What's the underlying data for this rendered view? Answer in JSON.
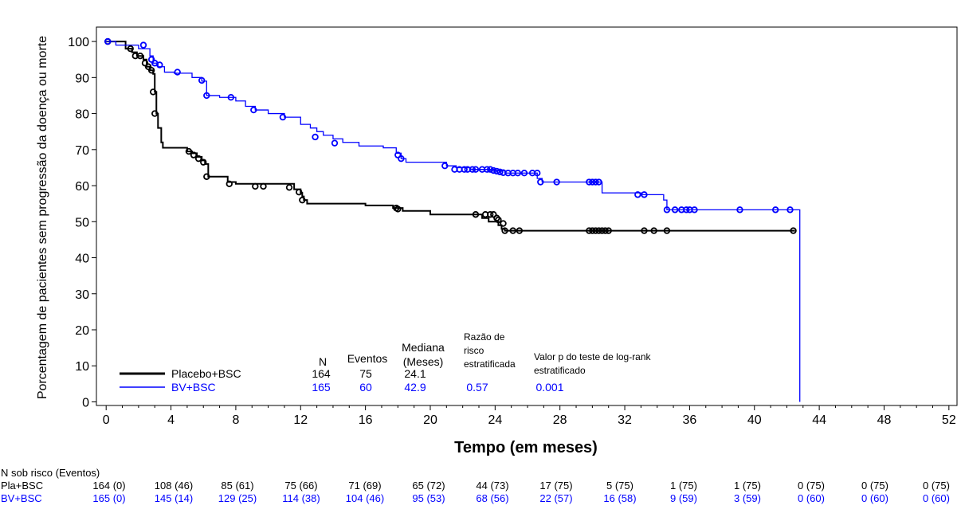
{
  "chart_data": {
    "type": "line",
    "subtype": "kaplan-meier",
    "xlabel": "Tempo (em meses)",
    "ylabel": "Porcentagem de pacientes sem progressão da doença ou morte",
    "xlim": [
      -0.6,
      52.5
    ],
    "ylim": [
      -1,
      104
    ],
    "xticks": [
      0,
      4,
      8,
      12,
      16,
      20,
      24,
      28,
      32,
      36,
      40,
      44,
      48,
      52
    ],
    "yticks": [
      0,
      10,
      20,
      30,
      40,
      50,
      60,
      70,
      80,
      90,
      100
    ],
    "series": [
      {
        "name": "Placebo+BSC",
        "color": "#000000",
        "steps": [
          [
            0,
            100
          ],
          [
            1.2,
            98
          ],
          [
            1.6,
            97
          ],
          [
            1.9,
            96
          ],
          [
            2.3,
            95
          ],
          [
            2.5,
            93
          ],
          [
            2.7,
            92
          ],
          [
            2.9,
            91
          ],
          [
            3.0,
            86
          ],
          [
            3.1,
            80
          ],
          [
            3.2,
            76
          ],
          [
            3.4,
            72
          ],
          [
            3.5,
            70.5
          ],
          [
            5.0,
            69.5
          ],
          [
            5.3,
            69
          ],
          [
            5.6,
            68
          ],
          [
            5.9,
            67
          ],
          [
            6.1,
            66
          ],
          [
            6.3,
            62.5
          ],
          [
            7.5,
            61
          ],
          [
            8.0,
            60.5
          ],
          [
            11.6,
            59
          ],
          [
            12.0,
            58
          ],
          [
            12.1,
            57
          ],
          [
            12.2,
            56
          ],
          [
            12.4,
            55
          ],
          [
            16.0,
            54.5
          ],
          [
            17.7,
            53.8
          ],
          [
            18.3,
            53
          ],
          [
            20.0,
            52
          ],
          [
            22.8,
            52
          ],
          [
            23.2,
            51
          ],
          [
            23.6,
            50
          ],
          [
            24.2,
            49
          ],
          [
            24.4,
            48
          ],
          [
            24.6,
            47.5
          ],
          [
            42.5,
            47.5
          ]
        ],
        "censored": [
          [
            0.1,
            100
          ],
          [
            1.5,
            98
          ],
          [
            1.8,
            96
          ],
          [
            2.1,
            96
          ],
          [
            2.4,
            94
          ],
          [
            2.6,
            93
          ],
          [
            2.8,
            92
          ],
          [
            2.9,
            86
          ],
          [
            3.0,
            80
          ],
          [
            5.1,
            69.5
          ],
          [
            5.4,
            68.5
          ],
          [
            5.7,
            67.5
          ],
          [
            6.0,
            66.5
          ],
          [
            6.2,
            62.5
          ],
          [
            7.6,
            60.5
          ],
          [
            9.2,
            59.8
          ],
          [
            9.7,
            59.8
          ],
          [
            11.3,
            59.5
          ],
          [
            11.9,
            58.2
          ],
          [
            12.1,
            56
          ],
          [
            17.9,
            53.8
          ],
          [
            18.0,
            53.5
          ],
          [
            22.8,
            52
          ],
          [
            23.4,
            52
          ],
          [
            23.7,
            52
          ],
          [
            23.9,
            52
          ],
          [
            24.1,
            51
          ],
          [
            24.2,
            50.5
          ],
          [
            24.5,
            49.5
          ],
          [
            24.6,
            47.5
          ],
          [
            25.1,
            47.5
          ],
          [
            25.5,
            47.5
          ],
          [
            29.8,
            47.5
          ],
          [
            30.0,
            47.5
          ],
          [
            30.2,
            47.5
          ],
          [
            30.4,
            47.5
          ],
          [
            30.6,
            47.5
          ],
          [
            30.8,
            47.5
          ],
          [
            31.0,
            47.5
          ],
          [
            33.2,
            47.5
          ],
          [
            33.8,
            47.5
          ],
          [
            34.6,
            47.5
          ],
          [
            42.4,
            47.5
          ]
        ]
      },
      {
        "name": "BV+BSC",
        "color": "#0000ff",
        "steps": [
          [
            0,
            100
          ],
          [
            0.6,
            99
          ],
          [
            2.0,
            98
          ],
          [
            2.7,
            96
          ],
          [
            2.9,
            94
          ],
          [
            3.2,
            93
          ],
          [
            3.6,
            91.5
          ],
          [
            4.2,
            91.2
          ],
          [
            5.3,
            90
          ],
          [
            5.9,
            89
          ],
          [
            6.2,
            85
          ],
          [
            7.0,
            84.5
          ],
          [
            8.0,
            83.5
          ],
          [
            8.6,
            82
          ],
          [
            9.2,
            81
          ],
          [
            10.0,
            80
          ],
          [
            11.0,
            79
          ],
          [
            12.0,
            77
          ],
          [
            12.6,
            76
          ],
          [
            13.0,
            75
          ],
          [
            13.4,
            74
          ],
          [
            14.0,
            73
          ],
          [
            14.6,
            72
          ],
          [
            15.6,
            71
          ],
          [
            17.1,
            70.5
          ],
          [
            17.9,
            69
          ],
          [
            18.2,
            67.5
          ],
          [
            18.5,
            66.5
          ],
          [
            21.0,
            65.5
          ],
          [
            21.6,
            65
          ],
          [
            22.5,
            64.5
          ],
          [
            24.0,
            64.2
          ],
          [
            24.6,
            63.5
          ],
          [
            26.6,
            62
          ],
          [
            26.9,
            61
          ],
          [
            29.8,
            61
          ],
          [
            30.6,
            58
          ],
          [
            33.0,
            57.5
          ],
          [
            34.4,
            56
          ],
          [
            34.6,
            53.3
          ],
          [
            42.8,
            53.3
          ],
          [
            42.8,
            0
          ]
        ],
        "censored": [
          [
            0.1,
            100
          ],
          [
            2.3,
            99
          ],
          [
            2.8,
            95
          ],
          [
            3.0,
            94
          ],
          [
            3.3,
            93.5
          ],
          [
            4.4,
            91.5
          ],
          [
            5.9,
            89.2
          ],
          [
            6.2,
            85
          ],
          [
            7.7,
            84.5
          ],
          [
            9.1,
            81
          ],
          [
            10.9,
            79
          ],
          [
            12.9,
            73.5
          ],
          [
            14.1,
            71.8
          ],
          [
            18.0,
            68.5
          ],
          [
            18.2,
            67.5
          ],
          [
            20.9,
            65.5
          ],
          [
            21.5,
            64.5
          ],
          [
            21.8,
            64.5
          ],
          [
            22.1,
            64.5
          ],
          [
            22.3,
            64.5
          ],
          [
            22.6,
            64.5
          ],
          [
            22.8,
            64.5
          ],
          [
            23.2,
            64.5
          ],
          [
            23.5,
            64.5
          ],
          [
            23.7,
            64.5
          ],
          [
            23.9,
            64.2
          ],
          [
            24.1,
            64
          ],
          [
            24.3,
            63.8
          ],
          [
            24.5,
            63.6
          ],
          [
            24.8,
            63.5
          ],
          [
            25.1,
            63.5
          ],
          [
            25.4,
            63.5
          ],
          [
            25.8,
            63.5
          ],
          [
            26.3,
            63.5
          ],
          [
            26.6,
            63.5
          ],
          [
            26.8,
            61
          ],
          [
            27.8,
            61
          ],
          [
            29.8,
            61
          ],
          [
            30.0,
            61
          ],
          [
            30.2,
            61
          ],
          [
            30.4,
            61
          ],
          [
            32.8,
            57.5
          ],
          [
            33.2,
            57.5
          ],
          [
            34.6,
            53.3
          ],
          [
            35.1,
            53.3
          ],
          [
            35.5,
            53.3
          ],
          [
            35.8,
            53.3
          ],
          [
            36.0,
            53.3
          ],
          [
            36.3,
            53.3
          ],
          [
            39.1,
            53.3
          ],
          [
            41.3,
            53.3
          ],
          [
            42.2,
            53.3
          ]
        ]
      }
    ]
  },
  "legend": {
    "headers": {
      "n": "N",
      "events": "Eventos",
      "median_line1": "Mediana",
      "median_line2": "(Meses)",
      "hr_line1": "Razão de",
      "hr_line2": "risco",
      "hr_line3": "estratificada",
      "pval_line1": "Valor p do teste de log-rank",
      "pval_line2": "estratificado"
    },
    "rows": [
      {
        "label": "Placebo+BSC",
        "n": "164",
        "events": "75",
        "median": "24.1",
        "hr": "",
        "pvalue": "",
        "color": "#000000"
      },
      {
        "label": "BV+BSC",
        "n": "165",
        "events": "60",
        "median": "42.9",
        "hr": "0.57",
        "pvalue": "0.001",
        "color": "#0000ff"
      }
    ]
  },
  "risk_table": {
    "title": "N sob risco (Eventos)",
    "rows": [
      {
        "label": "Pla+BSC",
        "color": "#000000",
        "values": [
          "164 (0)",
          "108 (46)",
          "85 (61)",
          "75 (66)",
          "71 (69)",
          "65 (72)",
          "44 (73)",
          "17 (75)",
          "5 (75)",
          "1 (75)",
          "1 (75)",
          "0 (75)",
          "0 (75)",
          "0 (75)"
        ]
      },
      {
        "label": "BV+BSC",
        "color": "#0000ff",
        "values": [
          "165 (0)",
          "145 (14)",
          "129 (25)",
          "114 (38)",
          "104 (46)",
          "95 (53)",
          "68 (56)",
          "22 (57)",
          "16 (58)",
          "9 (59)",
          "3 (59)",
          "0 (60)",
          "0 (60)",
          "0 (60)"
        ]
      }
    ]
  }
}
